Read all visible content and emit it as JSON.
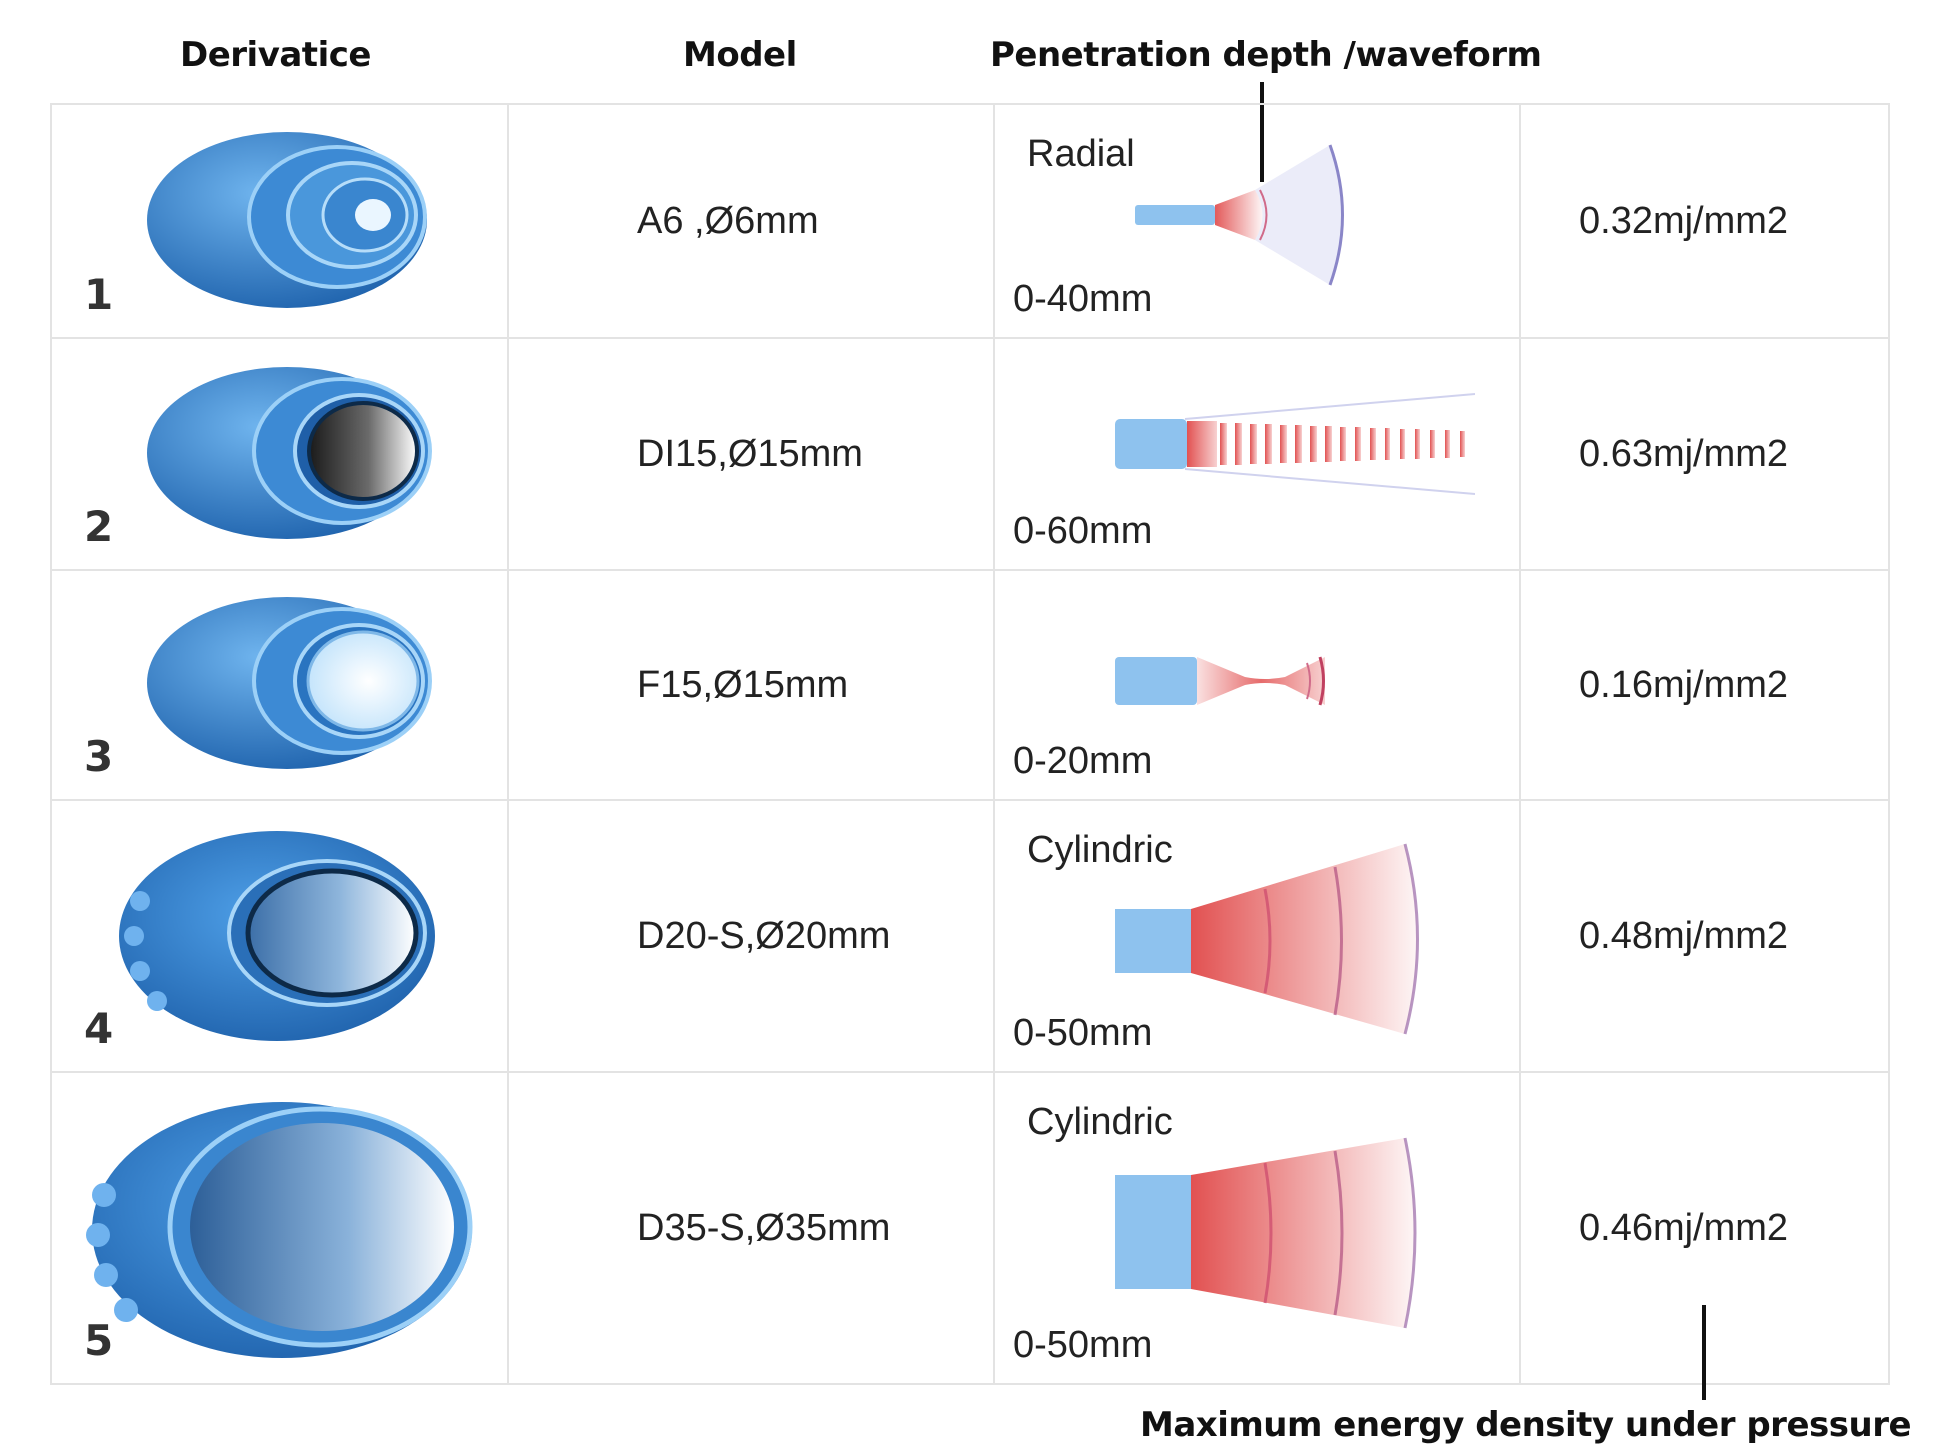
{
  "headers": {
    "derivative": "Derivatice",
    "model": "Model",
    "penetration": "Penetration depth /waveform"
  },
  "footer_note": "Maximum energy density under pressure",
  "rows": [
    {
      "number": "1",
      "model": "A6 ,Ø6mm",
      "wave_type": "Radial",
      "depth": "0-40mm",
      "energy": "0.32mj/mm2",
      "tip_icon": "transmitter-tip-6mm-icon",
      "wave_icon": "radial-wave-icon"
    },
    {
      "number": "2",
      "model": "DI15,Ø15mm",
      "wave_type": "",
      "depth": "0-60mm",
      "energy": "0.63mj/mm2",
      "tip_icon": "transmitter-tip-15mm-icon",
      "wave_icon": "dashed-focused-wave-icon"
    },
    {
      "number": "3",
      "model": "F15,Ø15mm",
      "wave_type": "",
      "depth": "0-20mm",
      "energy": "0.16mj/mm2",
      "tip_icon": "transmitter-tip-focused-15mm-icon",
      "wave_icon": "focused-wave-icon"
    },
    {
      "number": "4",
      "model": "D20-S,Ø20mm",
      "wave_type": "Cylindric",
      "depth": "0-50mm",
      "energy": "0.48mj/mm2",
      "tip_icon": "transmitter-tip-20mm-icon",
      "wave_icon": "cylindric-wave-icon"
    },
    {
      "number": "5",
      "model": "D35-S,Ø35mm",
      "wave_type": "Cylindric",
      "depth": "0-50mm",
      "energy": "0.46mj/mm2",
      "tip_icon": "transmitter-tip-35mm-icon",
      "wave_icon": "cylindric-wave-icon"
    }
  ],
  "colors": {
    "tip_blue": "#2f7fc8",
    "wave_red": "#e04848",
    "probe_blue": "#8ec2ee"
  }
}
